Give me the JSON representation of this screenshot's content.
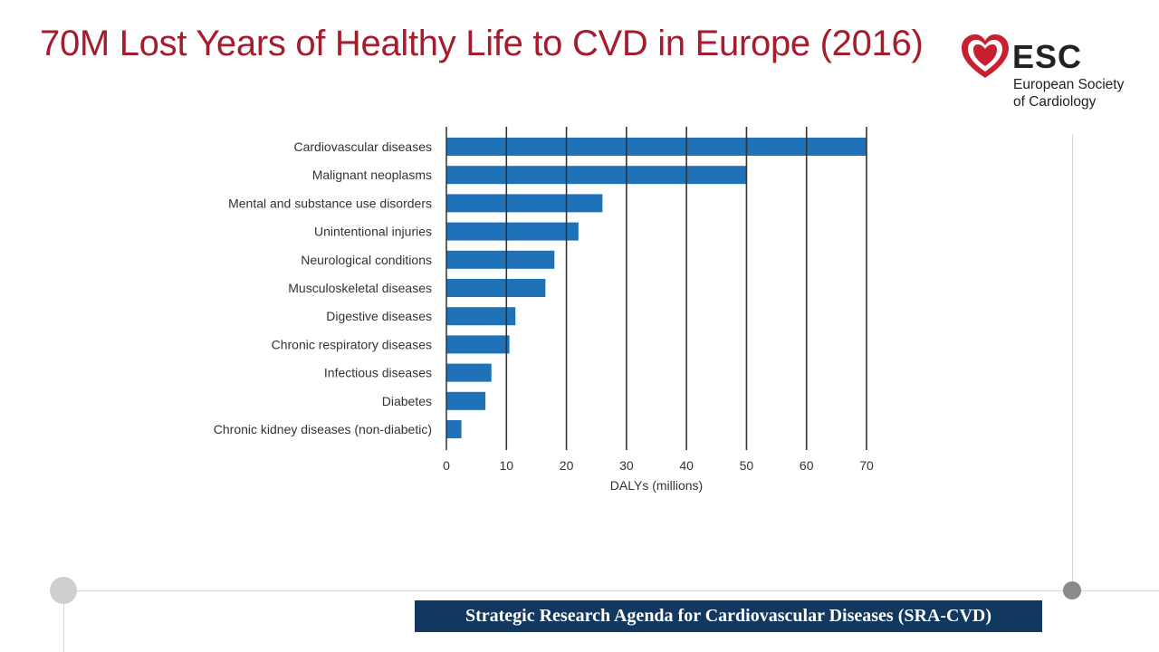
{
  "slide": {
    "title": "70M Lost Years of Healthy Life to CVD in Europe (2016)",
    "footer_banner": "Strategic Research Agenda for Cardiovascular Diseases (SRA-CVD)"
  },
  "logo": {
    "mark": "ESC",
    "name_line1": "European Society",
    "name_line2": "of Cardiology",
    "icon": "heart-icon",
    "color": "#c8202f"
  },
  "colors": {
    "title": "#a51d2d",
    "bar": "#1f71b8",
    "banner": "#12385f"
  },
  "chart_data": {
    "type": "bar",
    "orientation": "horizontal",
    "categories": [
      "Cardiovascular diseases",
      "Malignant neoplasms",
      "Mental and substance use disorders",
      "Unintentional injuries",
      "Neurological conditions",
      "Musculoskeletal diseases",
      "Digestive diseases",
      "Chronic respiratory diseases",
      "Infectious diseases",
      "Diabetes",
      "Chronic kidney diseases (non-diabetic)"
    ],
    "values": [
      70,
      50,
      26,
      22,
      18,
      16.5,
      11.5,
      10.5,
      7.5,
      6.5,
      2.5
    ],
    "title": "",
    "xlabel": "DALYs (millions)",
    "ylabel": "",
    "xlim": [
      0,
      70
    ],
    "xticks": [
      0,
      10,
      20,
      30,
      40,
      50,
      60,
      70
    ],
    "grid": "vertical",
    "legend": "none"
  }
}
